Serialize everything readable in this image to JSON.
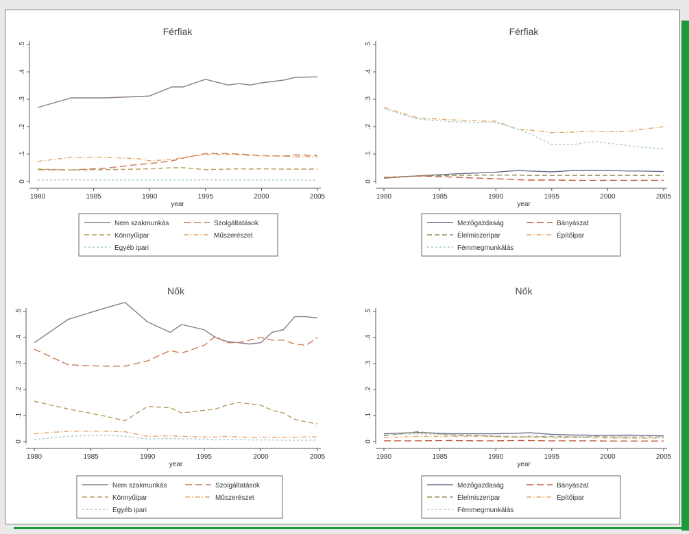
{
  "colors": {
    "accent": "#1f9a3a",
    "nem_szakmunkas": "#8c7a8c",
    "szolgaltatasok": "#c97a55",
    "konnyuipar": "#b59a5a",
    "muszereszet": "#e6a56a",
    "egyeb_ipari": "#a8c8c8",
    "mezogazdasag": "#6f6f8a",
    "banyaszat": "#c05a3a",
    "elelmiszeripar": "#9a8a5a",
    "epitoipar": "#e0a868",
    "femmegmunkalas": "#a9c9d0"
  },
  "chart_data": [
    {
      "type": "line",
      "title": "Férfiak",
      "xlabel": "year",
      "ylabel": "",
      "xlim": [
        1980,
        2005
      ],
      "ylim": [
        0,
        0.5
      ],
      "xticks": [
        "1980",
        "1985",
        "1990",
        "1995",
        "2000",
        "2005"
      ],
      "yticks": [
        ".5",
        ".4",
        ".3",
        ".2",
        ".1",
        "0"
      ],
      "grid": false,
      "legend_position": "bottom",
      "x": [
        1980,
        1983,
        1986,
        1989,
        1990,
        1992,
        1993,
        1995,
        1997,
        1998,
        1999,
        2000,
        2002,
        2003,
        2005
      ],
      "series": [
        {
          "name": "Nem szakmunkás",
          "color_key": "nem_szakmunkas",
          "dash": "solid",
          "values": [
            0.27,
            0.305,
            0.305,
            0.31,
            0.312,
            0.345,
            0.345,
            0.373,
            0.352,
            0.357,
            0.352,
            0.36,
            0.37,
            0.38,
            0.382
          ]
        },
        {
          "name": "Szolgáltatások",
          "color_key": "szolgaltatasok",
          "dash": "long",
          "values": [
            0.043,
            0.042,
            0.048,
            0.062,
            0.065,
            0.075,
            0.085,
            0.102,
            0.102,
            0.1,
            0.097,
            0.095,
            0.093,
            0.097,
            0.095
          ]
        },
        {
          "name": "Könnyűipar",
          "color_key": "konnyuipar",
          "dash": "medium",
          "values": [
            0.045,
            0.042,
            0.043,
            0.045,
            0.046,
            0.05,
            0.05,
            0.043,
            0.045,
            0.046,
            0.045,
            0.046,
            0.045,
            0.045,
            0.045
          ]
        },
        {
          "name": "Műszerészet",
          "color_key": "muszereszet",
          "dash": "dashdot",
          "values": [
            0.073,
            0.088,
            0.088,
            0.083,
            0.075,
            0.08,
            0.088,
            0.098,
            0.098,
            0.097,
            0.095,
            0.093,
            0.092,
            0.09,
            0.09
          ]
        },
        {
          "name": "Egyéb ipari",
          "color_key": "egyeb_ipari",
          "dash": "short",
          "values": [
            0.005,
            0.006,
            0.005,
            0.005,
            0.005,
            0.005,
            0.005,
            0.006,
            0.005,
            0.005,
            0.005,
            0.005,
            0.005,
            0.005,
            0.004
          ]
        }
      ]
    },
    {
      "type": "line",
      "title": "Férfiak",
      "xlabel": "year",
      "ylabel": "",
      "xlim": [
        1980,
        2005
      ],
      "ylim": [
        0,
        0.5
      ],
      "xticks": [
        "1980",
        "1985",
        "1990",
        "1995",
        "2000",
        "2005"
      ],
      "yticks": [
        ".5",
        ".4",
        ".3",
        ".2",
        ".1",
        "0"
      ],
      "grid": false,
      "legend_position": "bottom",
      "x": [
        1980,
        1983,
        1986,
        1989,
        1990,
        1992,
        1993,
        1995,
        1997,
        1998,
        1999,
        2000,
        2002,
        2003,
        2005
      ],
      "series": [
        {
          "name": "Mezőgazdaság",
          "color_key": "mezogazdasag",
          "dash": "solid",
          "values": [
            0.013,
            0.02,
            0.027,
            0.032,
            0.034,
            0.04,
            0.038,
            0.035,
            0.04,
            0.04,
            0.04,
            0.04,
            0.038,
            0.038,
            0.036
          ]
        },
        {
          "name": "Bányászat",
          "color_key": "banyaszat",
          "dash": "long",
          "values": [
            0.012,
            0.02,
            0.016,
            0.011,
            0.01,
            0.006,
            0.005,
            0.005,
            0.004,
            0.004,
            0.004,
            0.004,
            0.004,
            0.004,
            0.004
          ]
        },
        {
          "name": "Élelmiszeripar",
          "color_key": "elelmiszeripar",
          "dash": "medium",
          "values": [
            0.015,
            0.02,
            0.022,
            0.023,
            0.023,
            0.023,
            0.022,
            0.022,
            0.022,
            0.022,
            0.022,
            0.022,
            0.022,
            0.022,
            0.022
          ]
        },
        {
          "name": "Építőipar",
          "color_key": "epitoipar",
          "dash": "dashdot",
          "values": [
            0.27,
            0.232,
            0.225,
            0.22,
            0.22,
            0.19,
            0.188,
            0.178,
            0.18,
            0.183,
            0.183,
            0.182,
            0.183,
            0.19,
            0.2
          ]
        },
        {
          "name": "Fémmegmunkálás",
          "color_key": "femmegmunkalas",
          "dash": "short",
          "values": [
            0.265,
            0.228,
            0.218,
            0.215,
            0.215,
            0.19,
            0.175,
            0.135,
            0.135,
            0.142,
            0.145,
            0.14,
            0.13,
            0.125,
            0.118
          ]
        }
      ]
    },
    {
      "type": "line",
      "title": "Nők",
      "xlabel": "year",
      "ylabel": "",
      "xlim": [
        1980,
        2005
      ],
      "ylim": [
        0,
        0.5
      ],
      "xticks": [
        "1980",
        "1985",
        "1990",
        "1995",
        "2000",
        "2005"
      ],
      "yticks": [
        ".5",
        ".4",
        ".3",
        ".2",
        ".1",
        "0"
      ],
      "grid": false,
      "legend_position": "bottom",
      "x": [
        1980,
        1983,
        1986,
        1988,
        1990,
        1992,
        1993,
        1995,
        1996,
        1997,
        1998,
        1999,
        2000,
        2001,
        2002,
        2003,
        2004,
        2005
      ],
      "series": [
        {
          "name": "Nem szakmunkás",
          "color_key": "nem_szakmunkas",
          "dash": "solid",
          "values": [
            0.38,
            0.47,
            0.51,
            0.535,
            0.46,
            0.42,
            0.45,
            0.43,
            0.4,
            0.385,
            0.38,
            0.375,
            0.38,
            0.42,
            0.43,
            0.48,
            0.48,
            0.475
          ]
        },
        {
          "name": "Szolgáltatások",
          "color_key": "szolgaltatasok",
          "dash": "long",
          "values": [
            0.355,
            0.295,
            0.29,
            0.29,
            0.31,
            0.35,
            0.34,
            0.37,
            0.405,
            0.38,
            0.38,
            0.39,
            0.4,
            0.39,
            0.39,
            0.375,
            0.37,
            0.4
          ]
        },
        {
          "name": "Könnyűipar",
          "color_key": "konnyuipar",
          "dash": "medium",
          "values": [
            0.155,
            0.125,
            0.1,
            0.08,
            0.135,
            0.13,
            0.11,
            0.12,
            0.125,
            0.14,
            0.15,
            0.145,
            0.14,
            0.12,
            0.11,
            0.085,
            0.075,
            0.068
          ]
        },
        {
          "name": "Műszerészet",
          "color_key": "muszereszet",
          "dash": "dashdot",
          "values": [
            0.03,
            0.04,
            0.04,
            0.038,
            0.02,
            0.022,
            0.02,
            0.018,
            0.017,
            0.02,
            0.018,
            0.016,
            0.017,
            0.015,
            0.016,
            0.016,
            0.018,
            0.018
          ]
        },
        {
          "name": "Egyéb ipari",
          "color_key": "egyeb_ipari",
          "dash": "short",
          "values": [
            0.008,
            0.02,
            0.025,
            0.02,
            0.01,
            0.012,
            0.01,
            0.01,
            0.006,
            0.008,
            0.008,
            0.006,
            0.006,
            0.006,
            0.005,
            0.005,
            0.005,
            0.006
          ]
        }
      ]
    },
    {
      "type": "line",
      "title": "Nők",
      "xlabel": "year",
      "ylabel": "",
      "xlim": [
        1980,
        2005
      ],
      "ylim": [
        0,
        0.5
      ],
      "xticks": [
        "1980",
        "1985",
        "1990",
        "1995",
        "2000",
        "2005"
      ],
      "yticks": [
        ".5",
        ".4",
        ".3",
        ".2",
        ".1",
        "0"
      ],
      "grid": false,
      "legend_position": "bottom",
      "x": [
        1980,
        1983,
        1986,
        1989,
        1990,
        1992,
        1993,
        1995,
        1997,
        1998,
        1999,
        2000,
        2002,
        2003,
        2005
      ],
      "series": [
        {
          "name": "Mezőgazdaság",
          "color_key": "mezogazdasag",
          "dash": "solid",
          "values": [
            0.03,
            0.035,
            0.03,
            0.03,
            0.03,
            0.032,
            0.034,
            0.028,
            0.025,
            0.025,
            0.024,
            0.024,
            0.025,
            0.024,
            0.022
          ]
        },
        {
          "name": "Bányászat",
          "color_key": "banyaszat",
          "dash": "long",
          "values": [
            0.003,
            0.003,
            0.004,
            0.003,
            0.003,
            0.004,
            0.004,
            0.003,
            0.003,
            0.003,
            0.003,
            0.002,
            0.002,
            0.002,
            0.002
          ]
        },
        {
          "name": "Élelmiszeripar",
          "color_key": "elelmiszeripar",
          "dash": "medium",
          "values": [
            0.022,
            0.038,
            0.025,
            0.022,
            0.02,
            0.018,
            0.018,
            0.02,
            0.018,
            0.018,
            0.02,
            0.018,
            0.018,
            0.018,
            0.018
          ]
        },
        {
          "name": "Építőipar",
          "color_key": "epitoipar",
          "dash": "dashdot",
          "values": [
            0.015,
            0.02,
            0.02,
            0.02,
            0.018,
            0.016,
            0.017,
            0.014,
            0.015,
            0.015,
            0.014,
            0.014,
            0.013,
            0.013,
            0.014
          ]
        },
        {
          "name": "Fémmegmunkálás",
          "color_key": "femmegmunkalas",
          "dash": "short",
          "values": [
            0.025,
            0.03,
            0.026,
            0.024,
            0.022,
            0.02,
            0.022,
            0.02,
            0.018,
            0.018,
            0.02,
            0.018,
            0.018,
            0.018,
            0.018
          ]
        }
      ]
    }
  ]
}
